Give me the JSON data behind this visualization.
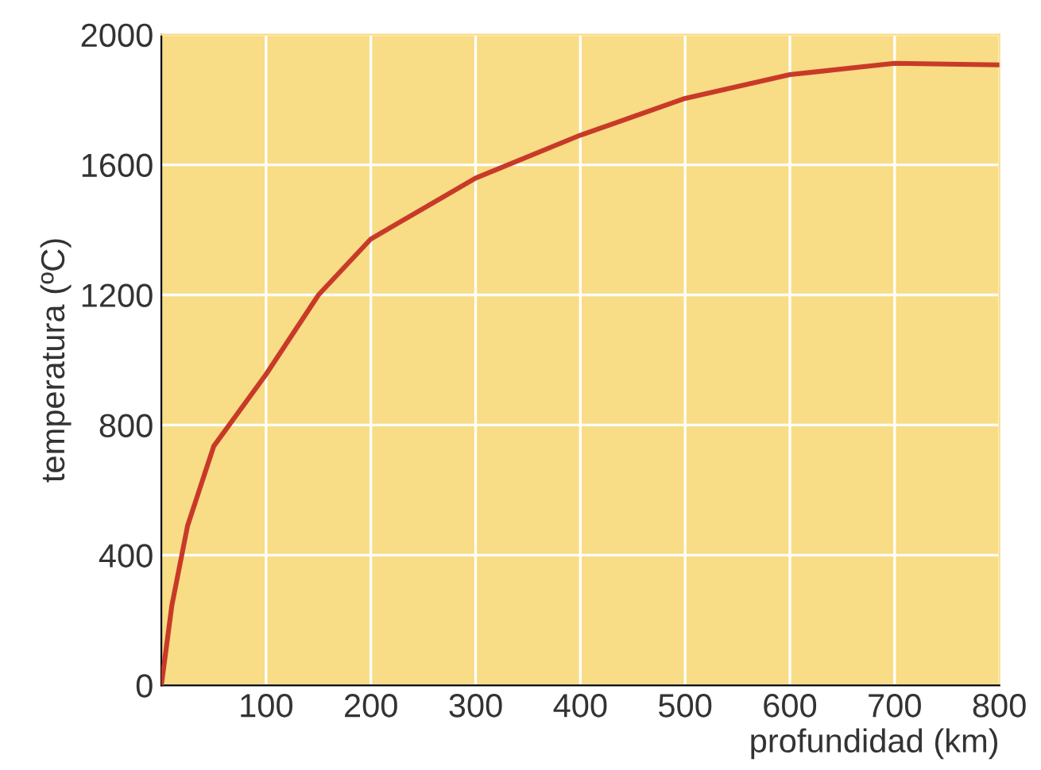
{
  "chart_data": {
    "type": "line",
    "xlabel": "profundidad (km)",
    "ylabel": "temperatura (ºC)",
    "x": [
      0,
      10,
      25,
      50,
      100,
      150,
      200,
      300,
      400,
      500,
      600,
      700,
      800
    ],
    "series": [
      {
        "color": "#c83a28",
        "values": [
          0,
          245,
          490,
          735,
          956,
          1200,
          1372,
          1559,
          1691,
          1804,
          1877,
          1912,
          1907
        ]
      }
    ],
    "xlim": [
      0,
      800
    ],
    "ylim": [
      0,
      2000
    ],
    "xticks": [
      100,
      200,
      300,
      400,
      500,
      600,
      700,
      800
    ],
    "yticks": [
      0,
      400,
      800,
      1200,
      1600,
      2000
    ],
    "grid": true,
    "marker": "none",
    "line_style": "solid"
  }
}
